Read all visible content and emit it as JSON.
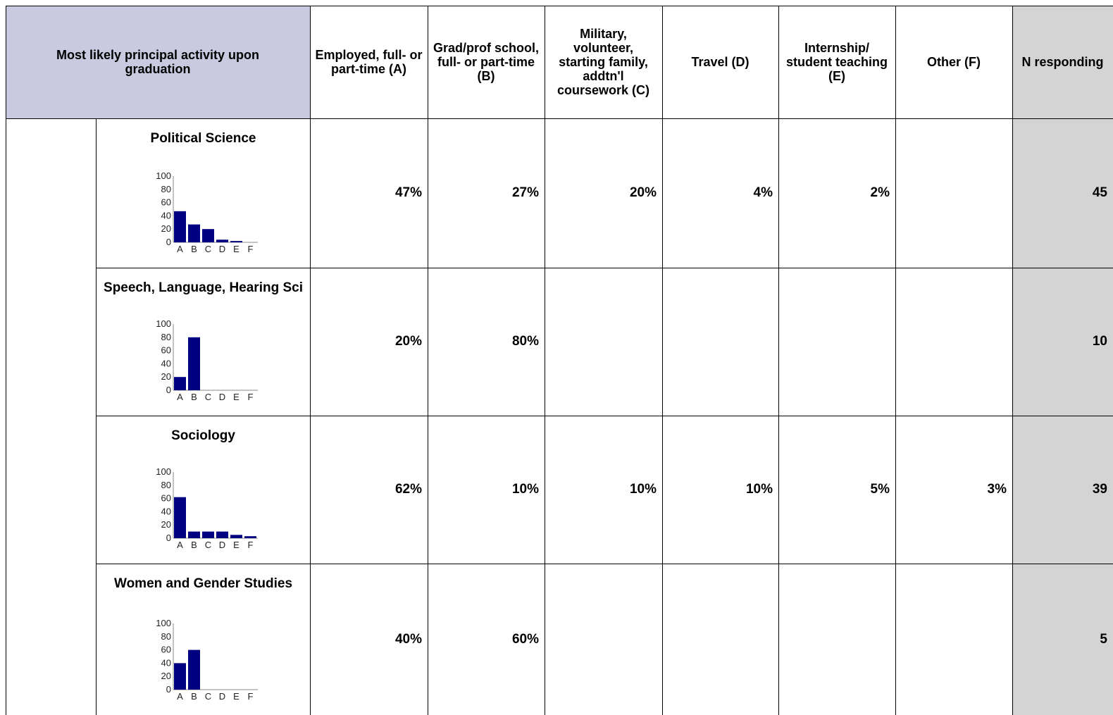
{
  "header": {
    "row_label": "Most likely principal activity upon graduation",
    "columns": [
      {
        "key": "A",
        "label": "Employed, full- or part-time (A)"
      },
      {
        "key": "B",
        "label": "Grad/prof school, full- or part-time (B)"
      },
      {
        "key": "C",
        "label": "Military, volunteer, starting family, addtn'l coursework (C)"
      },
      {
        "key": "D",
        "label": "Travel (D)"
      },
      {
        "key": "E",
        "label": "Internship/ student teaching (E)"
      },
      {
        "key": "F",
        "label": "Other (F)"
      }
    ],
    "n_label": "N responding"
  },
  "rows": [
    {
      "major": "Political Science",
      "values": [
        "47%",
        "27%",
        "20%",
        "4%",
        "2%",
        ""
      ],
      "n": "45"
    },
    {
      "major": "Speech, Language, Hearing Sci",
      "values": [
        "20%",
        "80%",
        "",
        "",
        "",
        ""
      ],
      "n": "10"
    },
    {
      "major": "Sociology",
      "values": [
        "62%",
        "10%",
        "10%",
        "10%",
        "5%",
        "3%"
      ],
      "n": "39"
    },
    {
      "major": "Women and Gender Studies",
      "values": [
        "40%",
        "60%",
        "",
        "",
        "",
        ""
      ],
      "n": "5"
    }
  ],
  "chart_data": [
    {
      "type": "bar",
      "title": "Political Science",
      "categories": [
        "A",
        "B",
        "C",
        "D",
        "E",
        "F"
      ],
      "values": [
        47,
        27,
        20,
        4,
        2,
        0
      ],
      "yticks": [
        "0",
        "20",
        "40",
        "60",
        "80",
        "100"
      ],
      "ylim": [
        0,
        100
      ],
      "color": "#000080"
    },
    {
      "type": "bar",
      "title": "Speech, Language, Hearing Sci",
      "categories": [
        "A",
        "B",
        "C",
        "D",
        "E",
        "F"
      ],
      "values": [
        20,
        80,
        0,
        0,
        0,
        0
      ],
      "yticks": [
        "0",
        "20",
        "40",
        "60",
        "80",
        "100"
      ],
      "ylim": [
        0,
        100
      ],
      "color": "#000080"
    },
    {
      "type": "bar",
      "title": "Sociology",
      "categories": [
        "A",
        "B",
        "C",
        "D",
        "E",
        "F"
      ],
      "values": [
        62,
        10,
        10,
        10,
        5,
        3
      ],
      "yticks": [
        "0",
        "20",
        "40",
        "60",
        "80",
        "100"
      ],
      "ylim": [
        0,
        100
      ],
      "color": "#000080"
    },
    {
      "type": "bar",
      "title": "Women and Gender Studies",
      "categories": [
        "A",
        "B",
        "C",
        "D",
        "E",
        "F"
      ],
      "values": [
        40,
        60,
        0,
        0,
        0,
        0
      ],
      "yticks": [
        "0",
        "20",
        "40",
        "60",
        "80",
        "100"
      ],
      "ylim": [
        0,
        100
      ],
      "color": "#000080"
    }
  ]
}
